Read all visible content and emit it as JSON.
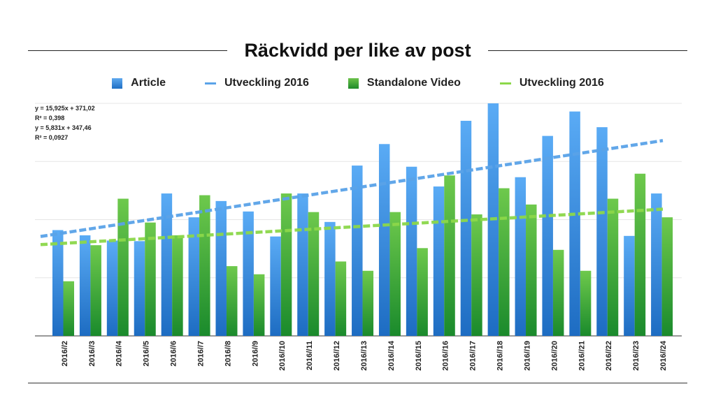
{
  "chart_data": {
    "type": "bar",
    "title": "Räckvidd per like av post",
    "xlabel": "",
    "ylabel": "",
    "ylim": [
      0,
      400
    ],
    "grid": true,
    "legend_position": "top",
    "categories": [
      "2016//2",
      "2016//3",
      "2016//4",
      "2016//5",
      "2016//6",
      "2016//7",
      "2016//8",
      "2016//9",
      "2016//10",
      "2016//11",
      "2016//12",
      "2016//13",
      "2016//14",
      "2016//15",
      "2016//16",
      "2016//17",
      "2016//18",
      "2016//19",
      "2016//20",
      "2016//21",
      "2016//22",
      "2016//23",
      "2016//24"
    ],
    "series": [
      {
        "name": "Article",
        "color": "#3a8de0",
        "values": [
          182,
          173,
          164,
          163,
          245,
          204,
          232,
          214,
          171,
          245,
          196,
          293,
          330,
          291,
          257,
          370,
          400,
          273,
          344,
          386,
          359,
          172,
          245
        ]
      },
      {
        "name": "Standalone Video",
        "color": "#3aa33a",
        "values": [
          94,
          156,
          236,
          195,
          173,
          242,
          120,
          106,
          245,
          213,
          128,
          112,
          213,
          151,
          276,
          209,
          254,
          226,
          148,
          112,
          236,
          279,
          204
        ]
      }
    ],
    "trendlines": [
      {
        "name": "Utveckling 2016",
        "color": "#5aa3e8",
        "of": "Article",
        "equation": "y = 15,925x + 371,02",
        "r2": "R² = 0,398",
        "start": 171,
        "end": 336
      },
      {
        "name": "Utveckling 2016",
        "color": "#8cd84a",
        "of": "Standalone Video",
        "equation": "y = 5,831x + 347,46",
        "r2": "R² = 0,0927",
        "start": 157,
        "end": 218
      }
    ]
  },
  "legend": [
    {
      "label": "Article",
      "kind": "box",
      "color": "#3a8de0"
    },
    {
      "label": "Utveckling 2016",
      "kind": "line",
      "color": "#5aa3e8"
    },
    {
      "label": "Standalone Video",
      "kind": "box",
      "color": "#3aa33a"
    },
    {
      "label": "Utveckling 2016",
      "kind": "line",
      "color": "#8cd84a"
    }
  ]
}
